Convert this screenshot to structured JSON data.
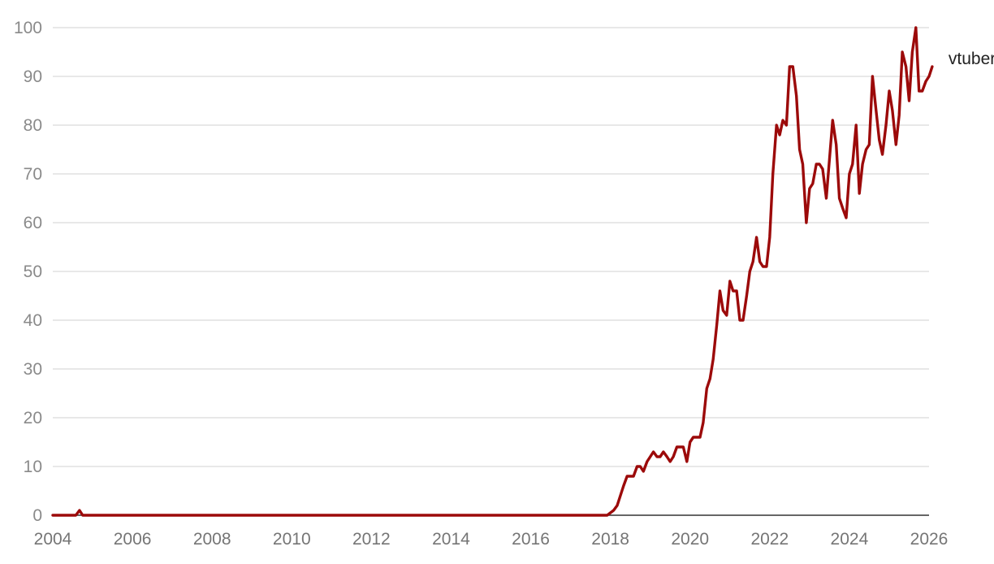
{
  "chart_data": {
    "type": "line",
    "title": "",
    "xlabel": "",
    "ylabel": "",
    "xlim": [
      2004,
      2026
    ],
    "ylim": [
      0,
      100
    ],
    "x_ticks": [
      "2004",
      "2006",
      "2008",
      "2010",
      "2012",
      "2014",
      "2016",
      "2018",
      "2020",
      "2022",
      "2024",
      "2026"
    ],
    "y_ticks": [
      "0",
      "10",
      "20",
      "30",
      "40",
      "50",
      "60",
      "70",
      "80",
      "90",
      "100"
    ],
    "grid": true,
    "legend": "none",
    "series": [
      {
        "name": "vtuber",
        "color": "#9c0a0a",
        "points": [
          [
            2004.0,
            0
          ],
          [
            2004.58,
            0
          ],
          [
            2004.67,
            1
          ],
          [
            2004.75,
            0
          ],
          [
            2017.92,
            0
          ],
          [
            2018.08,
            1
          ],
          [
            2018.17,
            2
          ],
          [
            2018.25,
            4
          ],
          [
            2018.33,
            6
          ],
          [
            2018.42,
            8
          ],
          [
            2018.5,
            8
          ],
          [
            2018.58,
            8
          ],
          [
            2018.67,
            10
          ],
          [
            2018.75,
            10
          ],
          [
            2018.83,
            9
          ],
          [
            2018.92,
            11
          ],
          [
            2019.0,
            12
          ],
          [
            2019.08,
            13
          ],
          [
            2019.17,
            12
          ],
          [
            2019.25,
            12
          ],
          [
            2019.33,
            13
          ],
          [
            2019.42,
            12
          ],
          [
            2019.5,
            11
          ],
          [
            2019.58,
            12
          ],
          [
            2019.67,
            14
          ],
          [
            2019.75,
            14
          ],
          [
            2019.83,
            14
          ],
          [
            2019.92,
            11
          ],
          [
            2020.0,
            15
          ],
          [
            2020.08,
            16
          ],
          [
            2020.17,
            16
          ],
          [
            2020.25,
            16
          ],
          [
            2020.33,
            19
          ],
          [
            2020.42,
            26
          ],
          [
            2020.5,
            28
          ],
          [
            2020.58,
            32
          ],
          [
            2020.67,
            39
          ],
          [
            2020.75,
            46
          ],
          [
            2020.83,
            42
          ],
          [
            2020.92,
            41
          ],
          [
            2021.0,
            48
          ],
          [
            2021.08,
            46
          ],
          [
            2021.17,
            46
          ],
          [
            2021.25,
            40
          ],
          [
            2021.33,
            40
          ],
          [
            2021.42,
            45
          ],
          [
            2021.5,
            50
          ],
          [
            2021.58,
            52
          ],
          [
            2021.67,
            57
          ],
          [
            2021.75,
            52
          ],
          [
            2021.83,
            51
          ],
          [
            2021.92,
            51
          ],
          [
            2022.0,
            57
          ],
          [
            2022.08,
            70
          ],
          [
            2022.17,
            80
          ],
          [
            2022.25,
            78
          ],
          [
            2022.33,
            81
          ],
          [
            2022.42,
            80
          ],
          [
            2022.5,
            92
          ],
          [
            2022.58,
            92
          ],
          [
            2022.67,
            86
          ],
          [
            2022.75,
            75
          ],
          [
            2022.83,
            72
          ],
          [
            2022.92,
            60
          ],
          [
            2023.0,
            67
          ],
          [
            2023.08,
            68
          ],
          [
            2023.17,
            72
          ],
          [
            2023.25,
            72
          ],
          [
            2023.33,
            71
          ],
          [
            2023.42,
            65
          ],
          [
            2023.5,
            73
          ],
          [
            2023.58,
            81
          ],
          [
            2023.67,
            76
          ],
          [
            2023.75,
            65
          ],
          [
            2023.83,
            63
          ],
          [
            2023.92,
            61
          ],
          [
            2024.0,
            70
          ],
          [
            2024.08,
            72
          ],
          [
            2024.17,
            80
          ],
          [
            2024.25,
            66
          ],
          [
            2024.33,
            72
          ],
          [
            2024.42,
            75
          ],
          [
            2024.5,
            76
          ],
          [
            2024.58,
            90
          ],
          [
            2024.67,
            83
          ],
          [
            2024.75,
            77
          ],
          [
            2024.83,
            74
          ],
          [
            2024.92,
            80
          ],
          [
            2025.0,
            87
          ],
          [
            2025.08,
            83
          ],
          [
            2025.17,
            76
          ],
          [
            2025.25,
            82
          ],
          [
            2025.33,
            95
          ],
          [
            2025.42,
            92
          ],
          [
            2025.5,
            85
          ],
          [
            2025.58,
            95
          ],
          [
            2025.67,
            100
          ],
          [
            2025.75,
            87
          ],
          [
            2025.83,
            87
          ],
          [
            2025.92,
            89
          ],
          [
            2026.0,
            90
          ],
          [
            2026.08,
            92
          ]
        ]
      }
    ]
  }
}
